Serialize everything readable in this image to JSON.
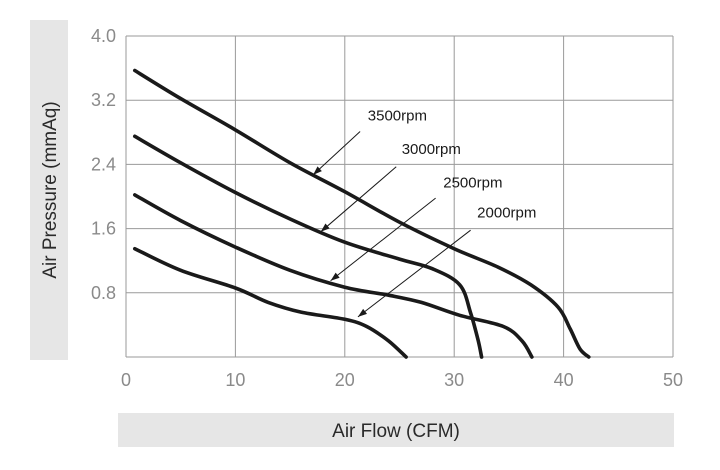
{
  "chart_data": {
    "type": "line",
    "xlabel": "Air Flow (CFM)",
    "ylabel": "Air Pressure (mmAq)",
    "xlim": [
      0,
      50
    ],
    "ylim": [
      0,
      4.0
    ],
    "x_ticks": [
      "0",
      "10",
      "20",
      "30",
      "40",
      "50"
    ],
    "y_ticks": [
      "0.8",
      "1.6",
      "2.4",
      "3.2",
      "4.0"
    ],
    "grid": true,
    "series": [
      {
        "name": "3500rpm",
        "points": [
          [
            0.8,
            3.57
          ],
          [
            5,
            3.22
          ],
          [
            10,
            2.83
          ],
          [
            15,
            2.42
          ],
          [
            20,
            2.06
          ],
          [
            25,
            1.68
          ],
          [
            30,
            1.35
          ],
          [
            34,
            1.12
          ],
          [
            37,
            0.9
          ],
          [
            39.5,
            0.62
          ],
          [
            40.6,
            0.35
          ],
          [
            41.5,
            0.1
          ],
          [
            42.3,
            0.0
          ]
        ]
      },
      {
        "name": "3000rpm",
        "points": [
          [
            0.8,
            2.75
          ],
          [
            5,
            2.42
          ],
          [
            10,
            2.05
          ],
          [
            15,
            1.72
          ],
          [
            20,
            1.43
          ],
          [
            25,
            1.22
          ],
          [
            28,
            1.1
          ],
          [
            30.5,
            0.9
          ],
          [
            31.5,
            0.55
          ],
          [
            32.2,
            0.2
          ],
          [
            32.5,
            0.0
          ]
        ]
      },
      {
        "name": "2500rpm",
        "points": [
          [
            0.8,
            2.02
          ],
          [
            5,
            1.7
          ],
          [
            10,
            1.37
          ],
          [
            15,
            1.08
          ],
          [
            20,
            0.87
          ],
          [
            24,
            0.77
          ],
          [
            27,
            0.68
          ],
          [
            30.5,
            0.52
          ],
          [
            34.5,
            0.38
          ],
          [
            36.2,
            0.2
          ],
          [
            37.1,
            0.0
          ]
        ]
      },
      {
        "name": "2000rpm",
        "points": [
          [
            0.8,
            1.35
          ],
          [
            5,
            1.08
          ],
          [
            10,
            0.86
          ],
          [
            13,
            0.68
          ],
          [
            16,
            0.56
          ],
          [
            20,
            0.47
          ],
          [
            22,
            0.38
          ],
          [
            24,
            0.2
          ],
          [
            25.6,
            0.0
          ]
        ]
      }
    ],
    "annotations": [
      {
        "label": "3500rpm",
        "text_at": [
          22.1,
          2.95
        ],
        "arrow_from": [
          21.4,
          2.81
        ],
        "arrow_to": [
          17.1,
          2.27
        ]
      },
      {
        "label": "3000rpm",
        "text_at": [
          25.2,
          2.53
        ],
        "arrow_from": [
          24.7,
          2.37
        ],
        "arrow_to": [
          17.8,
          1.56
        ]
      },
      {
        "label": "2500rpm",
        "text_at": [
          29.0,
          2.11
        ],
        "arrow_from": [
          28.3,
          1.98
        ],
        "arrow_to": [
          18.7,
          0.95
        ]
      },
      {
        "label": "2000rpm",
        "text_at": [
          32.1,
          1.74
        ],
        "arrow_from": [
          31.5,
          1.58
        ],
        "arrow_to": [
          21.2,
          0.5
        ]
      }
    ],
    "colors": {
      "line": "#1a1a1a",
      "grid": "#9a9a9a",
      "tick_label": "#8a8a8a",
      "axis_band": "#e6e6e6"
    }
  }
}
